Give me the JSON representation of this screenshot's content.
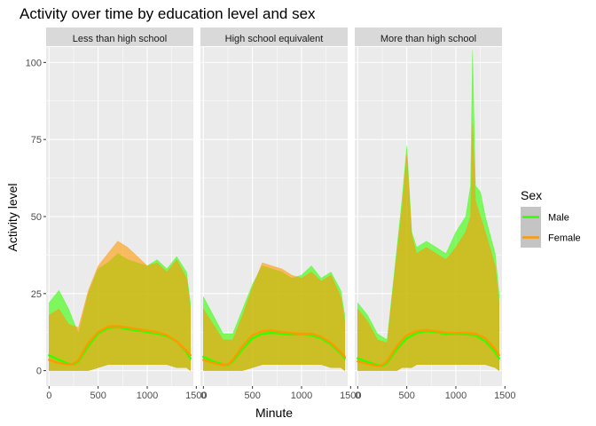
{
  "chart_data": {
    "type": "line",
    "title": "Activity over time by education level and sex",
    "xlabel": "Minute",
    "ylabel": "Activity level",
    "xlim": [
      -30,
      1470
    ],
    "ylim": [
      -5,
      105
    ],
    "x_ticks": [
      0,
      500,
      1000,
      1500
    ],
    "y_ticks": [
      0,
      25,
      50,
      75,
      100
    ],
    "grid": true,
    "legend": {
      "title": "Sex",
      "placement": "right",
      "entries": [
        {
          "name": "Male",
          "color": "#33FF00"
        },
        {
          "name": "Female",
          "color": "#FF9900"
        }
      ]
    },
    "panels": [
      {
        "label": "Less than high school",
        "series": [
          {
            "name": "Male",
            "style": "raw",
            "x": [
              0,
              100,
              200,
              300,
              400,
              500,
              600,
              700,
              800,
              900,
              1000,
              1100,
              1200,
              1300,
              1400,
              1440
            ],
            "upper": [
              22,
              26,
              20,
              12,
              25,
              33,
              35,
              38,
              36,
              35,
              34,
              36,
              33,
              37,
              32,
              22
            ],
            "lower": [
              0,
              0,
              0,
              0,
              0,
              1,
              2,
              2,
              2,
              2,
              2,
              2,
              2,
              1,
              1,
              0
            ]
          },
          {
            "name": "Female",
            "style": "raw",
            "x": [
              0,
              100,
              200,
              300,
              400,
              500,
              600,
              700,
              800,
              900,
              1000,
              1100,
              1200,
              1300,
              1400,
              1440
            ],
            "upper": [
              18,
              20,
              15,
              14,
              26,
              34,
              38,
              42,
              40,
              37,
              34,
              35,
              32,
              36,
              30,
              20
            ],
            "lower": [
              0,
              0,
              0,
              0,
              0,
              1,
              2,
              2,
              2,
              2,
              2,
              2,
              2,
              1,
              1,
              0
            ]
          },
          {
            "name": "Male",
            "style": "smooth",
            "x": [
              0,
              100,
              200,
              250,
              300,
              400,
              500,
              600,
              700,
              800,
              900,
              1000,
              1100,
              1200,
              1300,
              1400,
              1440
            ],
            "y": [
              5,
              3.5,
              2.2,
              2,
              3,
              8,
              12,
              13.8,
              14.2,
              13.5,
              13,
              12.5,
              12,
              11.2,
              9.5,
              6,
              4
            ]
          },
          {
            "name": "Female",
            "style": "smooth",
            "x": [
              0,
              100,
              200,
              250,
              300,
              400,
              500,
              600,
              700,
              800,
              900,
              1000,
              1100,
              1200,
              1300,
              1400,
              1440
            ],
            "y": [
              3.5,
              2.5,
              2,
              2.2,
              3.5,
              9,
              12.5,
              14.3,
              14.5,
              14,
              13.5,
              13,
              12.5,
              11.5,
              9.5,
              6.5,
              5
            ]
          }
        ]
      },
      {
        "label": "High school equivalent",
        "series": [
          {
            "name": "Male",
            "style": "raw",
            "x": [
              0,
              100,
              200,
              300,
              400,
              500,
              600,
              700,
              800,
              900,
              1000,
              1100,
              1200,
              1300,
              1400,
              1440
            ],
            "upper": [
              24,
              18,
              12,
              12,
              20,
              28,
              34,
              33,
              32,
              30,
              31,
              34,
              30,
              32,
              26,
              18
            ],
            "lower": [
              0,
              0,
              0,
              0,
              0,
              1,
              2,
              2,
              2,
              2,
              2,
              2,
              2,
              1,
              1,
              0
            ]
          },
          {
            "name": "Female",
            "style": "raw",
            "x": [
              0,
              100,
              200,
              300,
              400,
              500,
              600,
              700,
              800,
              900,
              1000,
              1100,
              1200,
              1300,
              1400,
              1440
            ],
            "upper": [
              20,
              15,
              10,
              10,
              18,
              27,
              35,
              34,
              33,
              31,
              30,
              32,
              29,
              31,
              24,
              16
            ],
            "lower": [
              0,
              0,
              0,
              0,
              0,
              1,
              2,
              2,
              2,
              2,
              2,
              2,
              2,
              1,
              1,
              0
            ]
          },
          {
            "name": "Male",
            "style": "smooth",
            "x": [
              0,
              100,
              200,
              250,
              300,
              400,
              500,
              600,
              700,
              800,
              900,
              1000,
              1100,
              1200,
              1300,
              1400,
              1440
            ],
            "y": [
              4.5,
              3,
              2,
              1.8,
              3,
              7,
              10.5,
              12,
              12.3,
              12,
              11.7,
              11.8,
              11.5,
              10.5,
              8.5,
              5.5,
              4
            ]
          },
          {
            "name": "Female",
            "style": "smooth",
            "x": [
              0,
              100,
              200,
              250,
              300,
              400,
              500,
              600,
              700,
              800,
              900,
              1000,
              1100,
              1200,
              1300,
              1400,
              1440
            ],
            "y": [
              3.5,
              2.5,
              1.8,
              2,
              3.5,
              8,
              11.5,
              12.8,
              13,
              12.5,
              12.2,
              12,
              12,
              11,
              9,
              6,
              4.5
            ]
          }
        ]
      },
      {
        "label": "More than high school",
        "series": [
          {
            "name": "Male",
            "style": "raw",
            "x": [
              0,
              100,
              200,
              300,
              400,
              450,
              500,
              550,
              600,
              700,
              800,
              900,
              1000,
              1100,
              1150,
              1170,
              1200,
              1250,
              1300,
              1400,
              1440
            ],
            "upper": [
              22,
              18,
              12,
              10,
              40,
              55,
              73,
              45,
              40,
              42,
              40,
              38,
              45,
              50,
              60,
              104,
              60,
              58,
              50,
              38,
              25
            ],
            "lower": [
              0,
              0,
              0,
              0,
              0,
              1,
              1,
              1,
              2,
              2,
              2,
              2,
              2,
              2,
              2,
              2,
              2,
              2,
              2,
              1,
              0
            ]
          },
          {
            "name": "Female",
            "style": "raw",
            "x": [
              0,
              100,
              200,
              300,
              400,
              450,
              500,
              550,
              600,
              700,
              800,
              900,
              1000,
              1100,
              1150,
              1170,
              1200,
              1250,
              1300,
              1400,
              1440
            ],
            "upper": [
              20,
              16,
              10,
              9,
              38,
              52,
              70,
              44,
              38,
              40,
              38,
              36,
              40,
              45,
              50,
              80,
              55,
              50,
              45,
              34,
              22
            ],
            "lower": [
              0,
              0,
              0,
              0,
              0,
              1,
              1,
              1,
              2,
              2,
              2,
              2,
              2,
              2,
              2,
              2,
              2,
              2,
              2,
              1,
              0
            ]
          },
          {
            "name": "Male",
            "style": "smooth",
            "x": [
              0,
              100,
              200,
              250,
              300,
              400,
              500,
              600,
              700,
              800,
              900,
              1000,
              1100,
              1200,
              1300,
              1400,
              1440
            ],
            "y": [
              4,
              2.8,
              1.8,
              1.5,
              2.5,
              7,
              10.5,
              12.2,
              12.8,
              12.5,
              11.8,
              12,
              11.8,
              11.5,
              9.5,
              6,
              4
            ]
          },
          {
            "name": "Female",
            "style": "smooth",
            "x": [
              0,
              100,
              200,
              250,
              300,
              400,
              500,
              600,
              700,
              800,
              900,
              1000,
              1100,
              1200,
              1300,
              1400,
              1440
            ],
            "y": [
              3,
              2.2,
              1.5,
              1.8,
              3,
              8,
              11.5,
              12.8,
              13.2,
              12.8,
              12.3,
              12.2,
              12.3,
              12,
              10.5,
              7,
              5
            ]
          }
        ]
      }
    ]
  }
}
